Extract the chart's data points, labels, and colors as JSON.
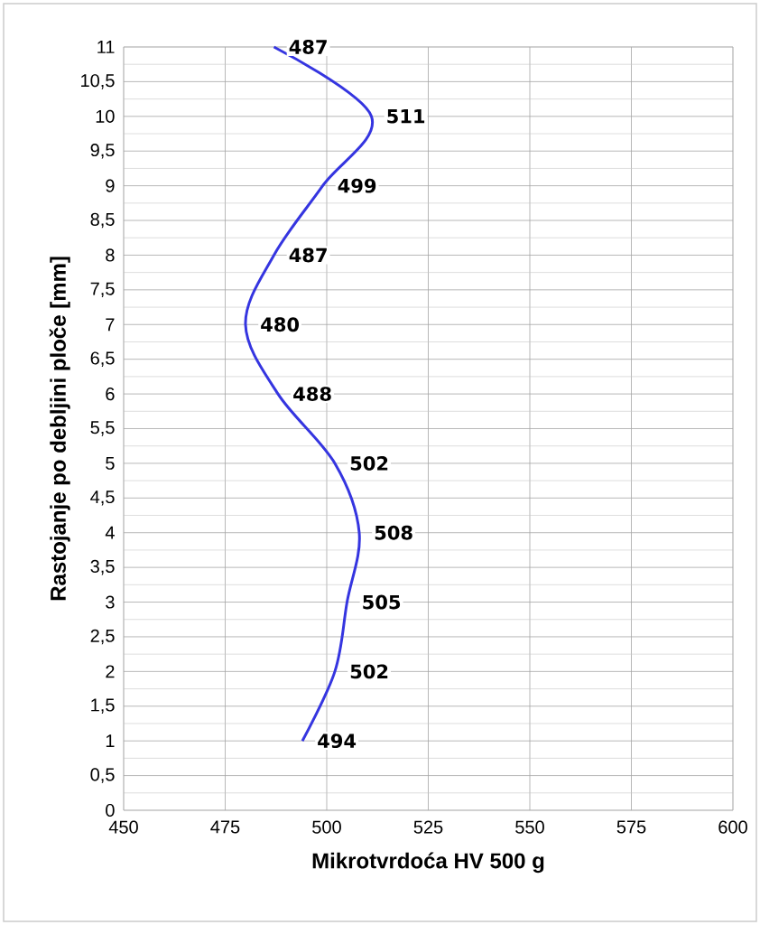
{
  "chart_data": {
    "type": "line",
    "orientation": "horizontal",
    "xlabel": "Mikrotvrdoća HV 500 g",
    "ylabel": "Rastojanje po debljini ploče [mm]",
    "x": [
      1,
      2,
      3,
      4,
      5,
      6,
      7,
      8,
      9,
      10,
      11
    ],
    "values": [
      494,
      502,
      505,
      508,
      502,
      488,
      480,
      487,
      499,
      511,
      487
    ],
    "color": "#3535e0",
    "data_labels": true,
    "grid": true,
    "marker": "none",
    "line_style": "solid",
    "xlim": [
      450,
      600
    ],
    "xticks": [
      450,
      475,
      500,
      525,
      550,
      575,
      600
    ],
    "ylim": [
      0,
      11
    ],
    "yticks": [
      0,
      {
        "value": 0.5,
        "label": "0,5"
      },
      1,
      {
        "value": 1.5,
        "label": "1,5"
      },
      2,
      {
        "value": 2.5,
        "label": "2,5"
      },
      3,
      {
        "value": 3.5,
        "label": "3,5"
      },
      4,
      {
        "value": 4.5,
        "label": "4,5"
      },
      5,
      {
        "value": 5.5,
        "label": "5,5"
      },
      6,
      {
        "value": 6.5,
        "label": "6,5"
      },
      7,
      {
        "value": 7.5,
        "label": "7,5"
      },
      8,
      {
        "value": 8.5,
        "label": "8,5"
      },
      9,
      {
        "value": 9.5,
        "label": "9,5"
      },
      10,
      {
        "value": 10.5,
        "label": "10,5"
      },
      11
    ]
  }
}
